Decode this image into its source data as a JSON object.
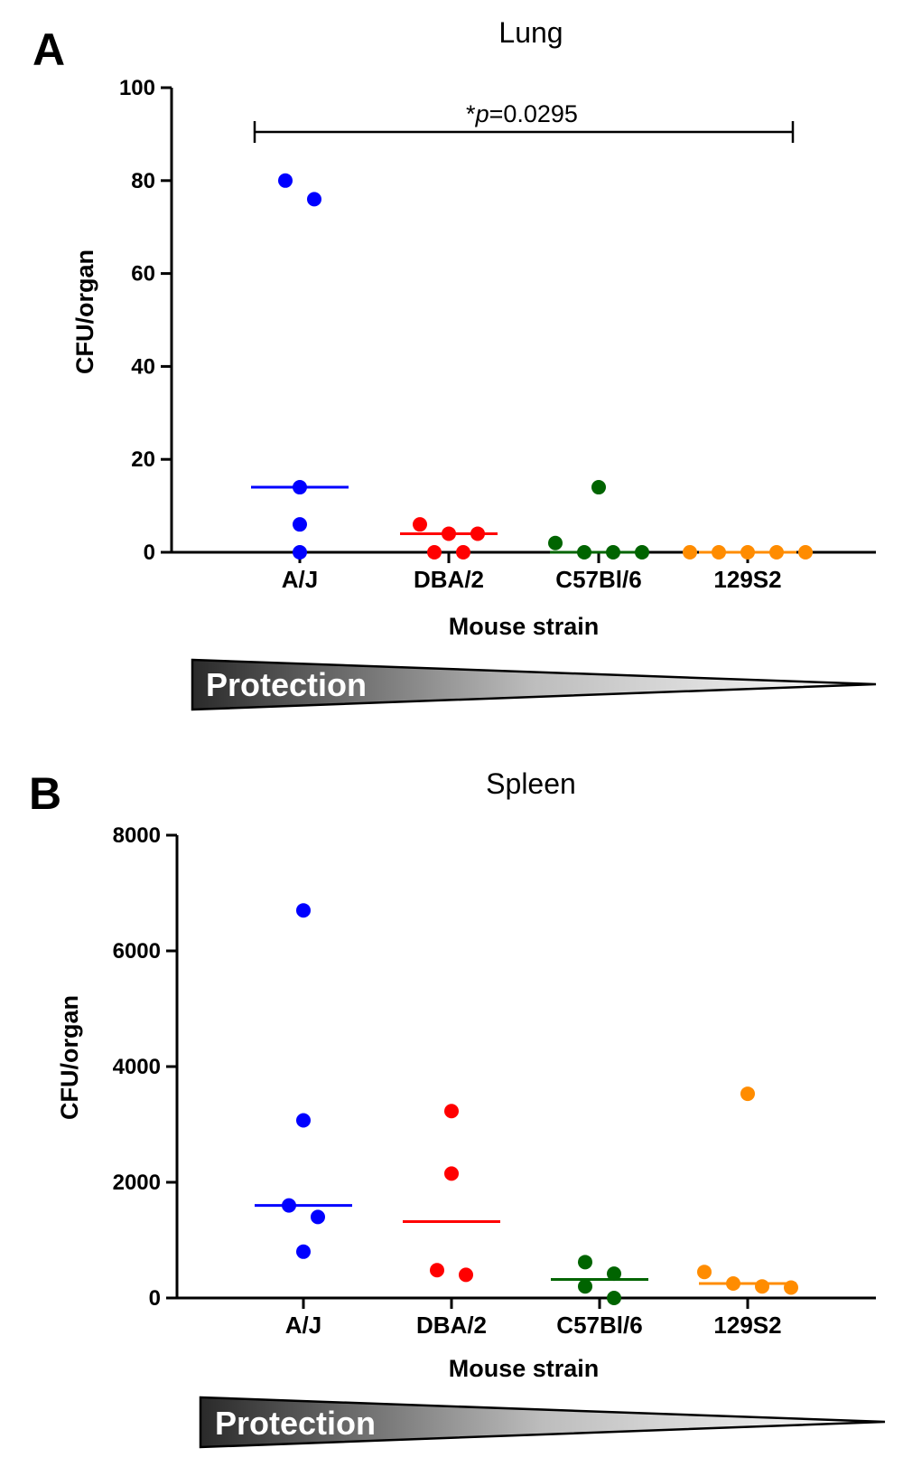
{
  "colors": {
    "A/J": "#0000ff",
    "DBA/2": "#ff0000",
    "C57Bl/6": "#006400",
    "129S2": "#ff8c00"
  },
  "protection_label": "Protection",
  "chart_data": [
    {
      "panel": "A",
      "type": "scatter",
      "title": "Lung",
      "xlabel": "Mouse strain",
      "ylabel": "CFU/organ",
      "categories": [
        "A/J",
        "DBA/2",
        "C57Bl/6",
        "129S2"
      ],
      "ylim": [
        0,
        100
      ],
      "yticks": [
        "0",
        "20",
        "40",
        "60",
        "80",
        "100"
      ],
      "series": [
        {
          "category": "A/J",
          "points": [
            80,
            76,
            14,
            6,
            0
          ],
          "median": 14
        },
        {
          "category": "DBA/2",
          "points": [
            6,
            4,
            4,
            0,
            0
          ],
          "median": 4
        },
        {
          "category": "C57Bl/6",
          "points": [
            14,
            2,
            0,
            0,
            0
          ],
          "median": 0
        },
        {
          "category": "129S2",
          "points": [
            0,
            0,
            0,
            0,
            0
          ],
          "median": 0
        }
      ],
      "annotation": {
        "text": "*p=0.0295",
        "star": "*",
        "p": "p",
        "value": "=0.0295",
        "from": "A/J",
        "to": "129S2"
      }
    },
    {
      "panel": "B",
      "type": "scatter",
      "title": "Spleen",
      "xlabel": "Mouse strain",
      "ylabel": "CFU/organ",
      "categories": [
        "A/J",
        "DBA/2",
        "C57Bl/6",
        "129S2"
      ],
      "ylim": [
        0,
        8000
      ],
      "yticks": [
        "0",
        "2000",
        "4000",
        "6000",
        "8000"
      ],
      "series": [
        {
          "category": "A/J",
          "points": [
            6700,
            3070,
            1600,
            1400,
            800
          ],
          "median": 1600
        },
        {
          "category": "DBA/2",
          "points": [
            3230,
            2150,
            480,
            400
          ],
          "median": 1320
        },
        {
          "category": "C57Bl/6",
          "points": [
            620,
            420,
            200,
            0
          ],
          "median": 320
        },
        {
          "category": "129S2",
          "points": [
            3530,
            450,
            250,
            200,
            180
          ],
          "median": 250
        }
      ]
    }
  ]
}
